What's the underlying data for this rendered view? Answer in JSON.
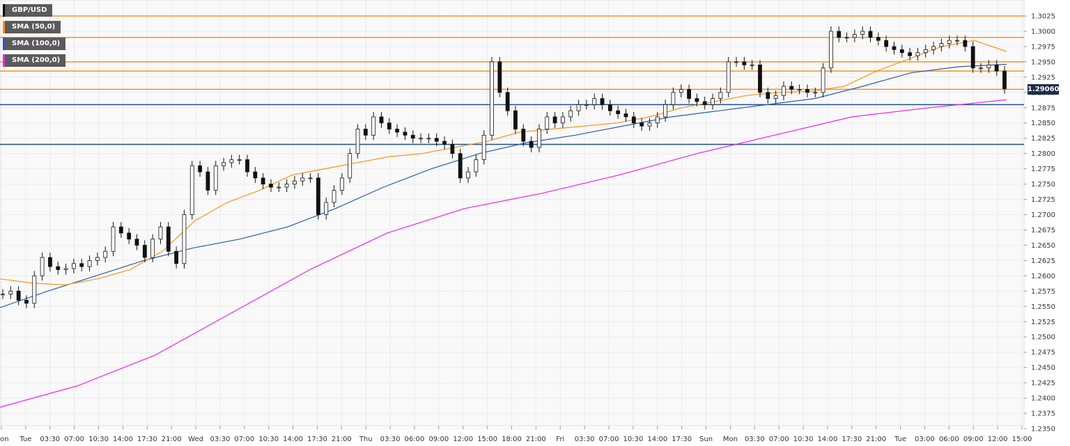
{
  "chart_data": {
    "type": "candlestick",
    "symbol": "GBP/USD",
    "legend": [
      {
        "label": "GBP/USD",
        "color": "#000000"
      },
      {
        "label": "SMA (50,0)",
        "color": "#f7931e"
      },
      {
        "label": "SMA (100,0)",
        "color": "#2a5caa"
      },
      {
        "label": "SMA (200,0)",
        "color": "#ee22ee"
      }
    ],
    "last_price": "1.29060",
    "ylim": [
      1.235,
      1.3025
    ],
    "y_ticks": [
      "1.3025",
      "1.3000",
      "1.2975",
      "1.2950",
      "1.2925",
      "1.2900",
      "1.2875",
      "1.2850",
      "1.2825",
      "1.2800",
      "1.2775",
      "1.2750",
      "1.2725",
      "1.2700",
      "1.2675",
      "1.2650",
      "1.2625",
      "1.2600",
      "1.2575",
      "1.2550",
      "1.2525",
      "1.2500",
      "1.2475",
      "1.2450",
      "1.2425",
      "1.2400",
      "1.2375",
      "1.2350"
    ],
    "x_ticks": [
      "Mon",
      "Tue",
      "03:30",
      "07:00",
      "10:30",
      "14:00",
      "17:30",
      "21:00",
      "Wed",
      "03:30",
      "07:00",
      "10:30",
      "14:00",
      "17:30",
      "21:00",
      "Thu",
      "03:30",
      "06:00",
      "09:00",
      "12:00",
      "15:00",
      "18:00",
      "21:00",
      "Fri",
      "03:30",
      "07:00",
      "10:30",
      "14:00",
      "17:30",
      "Sun",
      "Mon",
      "03:30",
      "07:00",
      "10:30",
      "14:00",
      "17:30",
      "21:00",
      "Tue",
      "03:00",
      "06:00",
      "09:00",
      "12:00",
      "15:00"
    ],
    "horizontal_levels": {
      "resistance": [
        1.3025,
        1.299,
        1.295,
        1.2935,
        1.2905
      ],
      "support": [
        1.288,
        1.2815
      ]
    },
    "colors": {
      "resistance": "#f7931e",
      "support": "#1d4f91",
      "sma50": "#f7931e",
      "sma100": "#2a5caa",
      "sma200": "#ee22ee"
    },
    "ohlc_close_path": [
      1.257,
      1.2575,
      1.256,
      1.2555,
      1.26,
      1.263,
      1.2615,
      1.261,
      1.2612,
      1.262,
      1.2615,
      1.2625,
      1.263,
      1.264,
      1.268,
      1.267,
      1.266,
      1.265,
      1.263,
      1.266,
      1.268,
      1.264,
      1.262,
      1.27,
      1.278,
      1.277,
      1.274,
      1.278,
      1.2785,
      1.279,
      1.279,
      1.277,
      1.276,
      1.275,
      1.2745,
      1.2745,
      1.275,
      1.2755,
      1.276,
      1.276,
      1.27,
      1.272,
      1.274,
      1.276,
      1.28,
      1.284,
      1.283,
      1.286,
      1.285,
      1.284,
      1.2835,
      1.283,
      1.2825,
      1.2825,
      1.2825,
      1.282,
      1.2815,
      1.28,
      1.276,
      1.277,
      1.279,
      1.283,
      1.295,
      1.29,
      1.287,
      1.284,
      1.282,
      1.281,
      1.284,
      1.286,
      1.285,
      1.286,
      1.287,
      1.288,
      1.288,
      1.289,
      1.288,
      1.287,
      1.2865,
      1.286,
      1.285,
      1.2845,
      1.285,
      1.286,
      1.288,
      1.29,
      1.2905,
      1.289,
      1.2885,
      1.288,
      1.289,
      1.29,
      1.295,
      1.295,
      1.2945,
      1.2945,
      1.29,
      1.289,
      1.2895,
      1.291,
      1.2905,
      1.2905,
      1.29,
      1.29,
      1.294,
      1.3,
      1.299,
      1.299,
      1.2995,
      1.3,
      1.299,
      1.2985,
      1.2975,
      1.297,
      1.2965,
      1.296,
      1.2965,
      1.297,
      1.2975,
      1.298,
      1.2985,
      1.2985,
      1.2975,
      1.294,
      1.294,
      1.2945,
      1.2935,
      1.2906
    ],
    "sma50_path": [
      1.2595,
      1.2588,
      1.2585,
      1.2595,
      1.261,
      1.264,
      1.269,
      1.272,
      1.274,
      1.2765,
      1.2775,
      1.2785,
      1.2795,
      1.28,
      1.281,
      1.282,
      1.2835,
      1.284,
      1.2845,
      1.285,
      1.286,
      1.2875,
      1.2885,
      1.2895,
      1.29,
      1.2902,
      1.291,
      1.2935,
      1.2955,
      1.2975,
      1.2985,
      1.2967
    ],
    "sma100_path": [
      1.2548,
      1.2575,
      1.26,
      1.2625,
      1.2645,
      1.266,
      1.268,
      1.271,
      1.2745,
      1.2775,
      1.28,
      1.2818,
      1.283,
      1.2845,
      1.286,
      1.287,
      1.288,
      1.289,
      1.291,
      1.2932,
      1.2942,
      1.2946
    ],
    "sma200_path": [
      1.2385,
      1.242,
      1.247,
      1.254,
      1.261,
      1.267,
      1.271,
      1.2735,
      1.2765,
      1.28,
      1.283,
      1.286,
      1.2875,
      1.2888
    ]
  }
}
